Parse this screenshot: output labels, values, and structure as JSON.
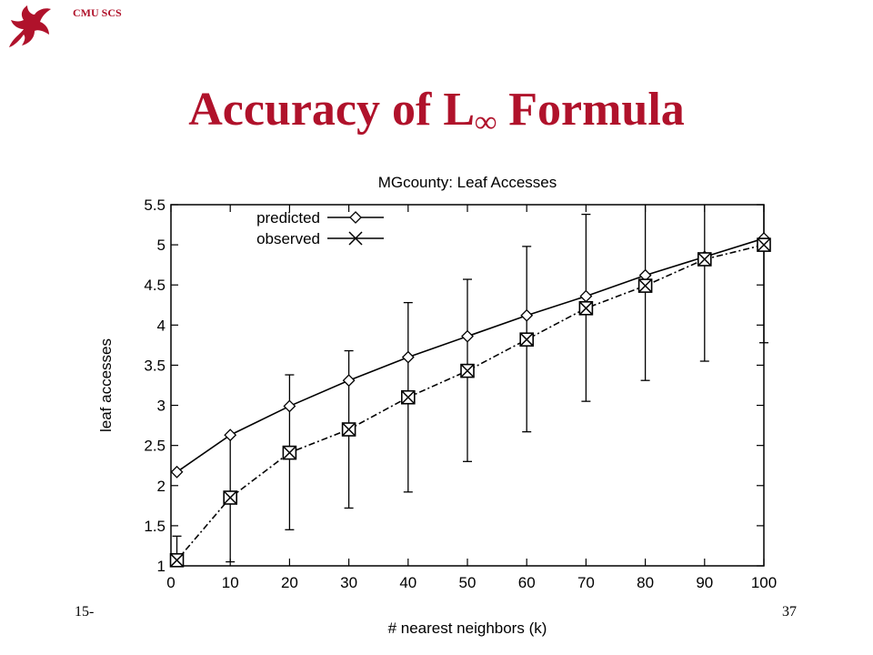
{
  "header": {
    "org_label": "CMU SCS",
    "logo_icon": "griffin-logo-icon"
  },
  "slide": {
    "title_main": "Accuracy of L",
    "title_sub": "∞",
    "title_tail": " Formula",
    "footer_left": "15-",
    "page_number": "37",
    "accent_color": "#b0122b"
  },
  "chart_data": {
    "type": "line",
    "title": "MGcounty: Leaf Accesses",
    "xlabel": "# nearest neighbors (k)",
    "ylabel": "leaf accesses",
    "xlim": [
      0,
      100
    ],
    "ylim": [
      1,
      5.5
    ],
    "xticks": [
      "0",
      "10",
      "20",
      "30",
      "40",
      "50",
      "60",
      "70",
      "80",
      "90",
      "100"
    ],
    "yticks": [
      "1",
      "1.5",
      "2",
      "2.5",
      "3",
      "3.5",
      "4",
      "4.5",
      "5",
      "5.5"
    ],
    "x": [
      1,
      10,
      20,
      30,
      40,
      50,
      60,
      70,
      80,
      90,
      100
    ],
    "legend_position": "top-left",
    "series": [
      {
        "name": "predicted",
        "marker": "diamond",
        "line_style": "solid",
        "values": [
          2.17,
          2.63,
          2.99,
          3.31,
          3.6,
          3.86,
          4.12,
          4.36,
          4.62,
          4.85,
          5.08
        ]
      },
      {
        "name": "observed",
        "marker": "x",
        "line_style": "dash-dot",
        "values": [
          1.07,
          1.85,
          2.41,
          2.7,
          3.1,
          3.43,
          3.82,
          4.21,
          4.49,
          4.82,
          5.0
        ],
        "error_low": [
          1.0,
          1.05,
          1.45,
          1.72,
          1.92,
          2.3,
          2.67,
          3.05,
          3.31,
          3.55,
          3.78
        ],
        "error_high": [
          1.37,
          2.62,
          3.38,
          3.68,
          4.28,
          4.57,
          4.98,
          5.38,
          5.5,
          5.5,
          5.5
        ]
      }
    ]
  }
}
